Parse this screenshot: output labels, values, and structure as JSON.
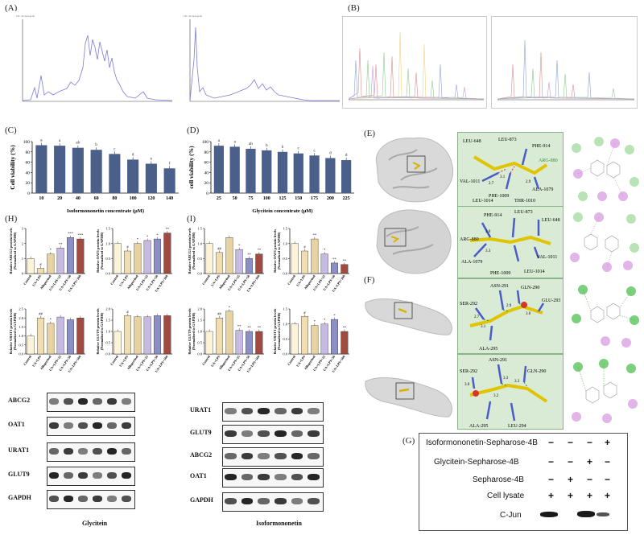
{
  "figure": {
    "panel_labels": {
      "A": "(A)",
      "B": "(B)",
      "C": "(C)",
      "D": "(D)",
      "E": "(E)",
      "F": "(F)",
      "G": "(G)",
      "H": "(H)",
      "I": "(I)"
    }
  },
  "colors": {
    "bar_blue": "#4a5f8a",
    "bar_tan": "#e8d3a3",
    "bar_purple": "#b3a8d6",
    "bar_red": "#a14a3f",
    "chrom_line": "#7b7bd6",
    "docking_green": "#cfe6cf"
  },
  "panelE": {
    "residues_top": [
      "LEU-648",
      "LEU-873",
      "PHE-914",
      "ARG-880",
      "VAL-1011",
      "LEU-1014",
      "PHE-1009",
      "THR-1010",
      "ALA-1079"
    ],
    "distances_top": [
      "3.1",
      "2.9",
      "2.7"
    ],
    "residues_bottom": [
      "PHE-914",
      "LEU-873",
      "LEU-648",
      "ARG-880",
      "ALA-1079",
      "VAL-1011",
      "PHE-1009",
      "LEU-1014"
    ],
    "distances_bottom": [
      "3.0",
      "3.3"
    ]
  },
  "panelF": {
    "residues_top": [
      "ASN-291",
      "GLN-290",
      "SER-292",
      "GLU-293",
      "ALA-295"
    ],
    "distances_top": [
      "2.7",
      "2.9",
      "3.0",
      "3.1"
    ],
    "residues_bottom": [
      "ASN-291",
      "GLN-290",
      "SER-292",
      "ALA-295",
      "LEU-294"
    ],
    "distances_bottom": [
      "3.3",
      "3.3",
      "3.0",
      "3.2"
    ]
  },
  "panelG": {
    "rows": [
      "Isoformononetin-Sepharose-4B",
      "Glycitein-Sepharose-4B",
      "Sepharose-4B",
      "Cell lysate"
    ],
    "signs": [
      [
        "−",
        "−",
        "−",
        "+"
      ],
      [
        "−",
        "−",
        "+",
        "−"
      ],
      [
        "−",
        "+",
        "−",
        "−"
      ],
      [
        "+",
        "+",
        "+",
        "+"
      ]
    ],
    "blot_label": "C-Jun"
  },
  "blotsH": {
    "labels": [
      "ABCG2",
      "OAT1",
      "URAT1",
      "GLUT9",
      "GAPDH"
    ],
    "caption": "Glycitein"
  },
  "blotsI": {
    "labels": [
      "URAT1",
      "GLUT9",
      "ABCG2",
      "OAT1",
      "GAPDH"
    ],
    "caption": "Isoformononetin"
  },
  "chart_data": [
    {
      "id": "C",
      "type": "bar",
      "ylabel": "Cell viability (%)",
      "xlabel": "Isoformononetin concentrate (μM)",
      "categories": [
        "10",
        "20",
        "40",
        "60",
        "80",
        "100",
        "120",
        "140"
      ],
      "values": [
        93,
        92,
        88,
        84,
        76,
        65,
        57,
        48
      ],
      "letters": [
        "a",
        "a",
        "ab",
        "b",
        "c",
        "d",
        "e",
        "f"
      ],
      "yticks": [
        "0",
        "20",
        "40",
        "60",
        "80",
        "100"
      ],
      "ylim": [
        0,
        100
      ]
    },
    {
      "id": "D",
      "type": "bar",
      "ylabel": "cell viability (%)",
      "xlabel": "Glycitein concentrate (μM)",
      "categories": [
        "25",
        "50",
        "75",
        "100",
        "125",
        "150",
        "175",
        "200",
        "225"
      ],
      "values": [
        92,
        90,
        86,
        83,
        80,
        77,
        73,
        68,
        64
      ],
      "letters": [
        "a",
        "a",
        "ab",
        "b",
        "b",
        "c",
        "c",
        "d",
        "d"
      ],
      "yticks": [
        "0",
        "20",
        "40",
        "60",
        "80",
        "100"
      ],
      "ylim": [
        0,
        100
      ]
    },
    {
      "id": "H1",
      "type": "bar",
      "ylabel": "Relative ABCG2 protein levels (Normalized to GAPDH)",
      "categories": [
        "Control",
        "UA+LPS",
        "Allopurinol",
        "UA+LPS+25",
        "UA+LPS+50",
        "UA+LPS+100"
      ],
      "values": [
        1.0,
        0.35,
        1.3,
        1.7,
        2.4,
        2.3
      ],
      "sig": [
        "",
        "#",
        "*",
        "**",
        "***",
        "***"
      ],
      "yticks": [
        "0",
        "1",
        "2",
        "3"
      ],
      "ylim": [
        0,
        3
      ]
    },
    {
      "id": "H2",
      "type": "bar",
      "ylabel": "Relative OAT1 protein levels (Normalized to GAPDH)",
      "categories": [
        "Control",
        "UA+LPS",
        "Allopurinol",
        "UA+LPS+25",
        "UA+LPS+50",
        "UA+LPS+100"
      ],
      "values": [
        1.0,
        0.75,
        1.0,
        1.1,
        1.15,
        1.35
      ],
      "sig": [
        "",
        "#",
        "*",
        "*",
        "*",
        "**"
      ],
      "yticks": [
        "0.0",
        "0.5",
        "1.0",
        "1.5"
      ],
      "ylim": [
        0,
        1.5
      ]
    },
    {
      "id": "H3",
      "type": "bar",
      "ylabel": "Relative URAT1 protein levels (Normalized to GAPDH)",
      "categories": [
        "Control",
        "UA+LPS",
        "Allopurinol",
        "UA+LPS+25",
        "UA+LPS+50",
        "UA+LPS+100"
      ],
      "values": [
        1.0,
        2.0,
        1.7,
        2.05,
        1.9,
        2.0
      ],
      "sig": [
        "",
        "##",
        "*",
        "",
        "",
        ""
      ],
      "yticks": [
        "0.0",
        "0.5",
        "1.0",
        "1.5",
        "2.0",
        "2.5"
      ],
      "ylim": [
        0,
        2.5
      ]
    },
    {
      "id": "H4",
      "type": "bar",
      "ylabel": "Relative GLUT9 protein levels (Normalized to GAPDH)",
      "categories": [
        "Control",
        "UA+LPS",
        "Allopurinol",
        "UA+LPS+25",
        "UA+LPS+50",
        "UA+LPS+100"
      ],
      "values": [
        1.0,
        1.7,
        1.65,
        1.65,
        1.7,
        1.7
      ],
      "sig": [
        "",
        "#",
        "",
        "",
        "",
        ""
      ],
      "yticks": [
        "0.0",
        "0.5",
        "1.0",
        "1.5",
        "2.0"
      ],
      "ylim": [
        0,
        2.0
      ]
    },
    {
      "id": "I1",
      "type": "bar",
      "ylabel": "Relative ABCG2 protein levels (Normalized to GAPDH)",
      "categories": [
        "Control",
        "UA+LPS",
        "Allopurinol",
        "UA+LPS+25",
        "UA+LPS+50",
        "UA+LPS+100"
      ],
      "values": [
        1.0,
        0.7,
        1.2,
        0.8,
        0.5,
        0.65
      ],
      "sig": [
        "",
        "##",
        "",
        "*",
        "**",
        "**"
      ],
      "yticks": [
        "0.0",
        "0.5",
        "1.0",
        "1.5"
      ],
      "ylim": [
        0,
        1.5
      ]
    },
    {
      "id": "I2",
      "type": "bar",
      "ylabel": "Relative OAT1 protein levels (Normalized to GAPDH)",
      "categories": [
        "Control",
        "UA+LPS",
        "Allopurinol",
        "UA+LPS+25",
        "UA+LPS+50",
        "UA+LPS+100"
      ],
      "values": [
        1.0,
        0.75,
        1.15,
        0.65,
        0.35,
        0.3
      ],
      "sig": [
        "",
        "#",
        "**",
        "*",
        "**",
        "**"
      ],
      "yticks": [
        "0.0",
        "0.5",
        "1.0",
        "1.5"
      ],
      "ylim": [
        0,
        1.5
      ]
    },
    {
      "id": "I3",
      "type": "bar",
      "ylabel": "Relative GLUT9 protein levels (Normalized to GAPDH)",
      "categories": [
        "Control",
        "UA+LPS",
        "Allopurinol",
        "UA+LPS+25",
        "UA+LPS+50",
        "UA+LPS+100"
      ],
      "values": [
        1.0,
        1.6,
        1.9,
        1.05,
        1.0,
        1.0
      ],
      "sig": [
        "",
        "##",
        "*",
        "**",
        "**",
        "**"
      ],
      "yticks": [
        "0.0",
        "0.5",
        "1.0",
        "1.5",
        "2.0"
      ],
      "ylim": [
        0,
        2.0
      ]
    },
    {
      "id": "I4",
      "type": "bar",
      "ylabel": "Relative URAT1 protein levels (Normalized to GAPDH)",
      "categories": [
        "Control",
        "UA+LPS",
        "Allopurinol",
        "UA+LPS+25",
        "UA+LPS+50",
        "UA+LPS+100"
      ],
      "values": [
        1.0,
        1.25,
        0.95,
        1.0,
        1.15,
        0.75
      ],
      "sig": [
        "",
        "#",
        "*",
        "*",
        "*",
        "**"
      ],
      "yticks": [
        "0.0",
        "0.5",
        "1.0",
        "1.5"
      ],
      "ylim": [
        0,
        1.5
      ]
    }
  ]
}
